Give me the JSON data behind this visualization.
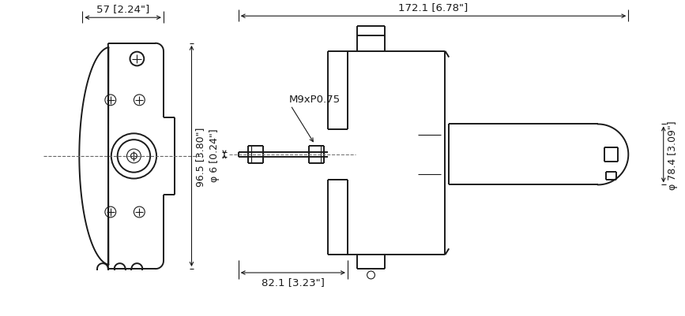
{
  "bg_color": "#ffffff",
  "line_color": "#1a1a1a",
  "figsize": [
    8.67,
    4.02
  ],
  "dpi": 100,
  "lw_main": 1.4,
  "lw_thin": 0.8,
  "lw_dim": 0.8,
  "annotations": {
    "dim_57": "57 [2.24\"]",
    "dim_172": "172.1 [6.78\"]",
    "dim_96": "96.5 [3.80\"]",
    "dim_78": "φ 78.4 [3.09\"]",
    "dim_82": "82.1 [3.23\"]",
    "dim_6": "φ 6 [0.24\"]",
    "thread": "M9xP0.75"
  }
}
